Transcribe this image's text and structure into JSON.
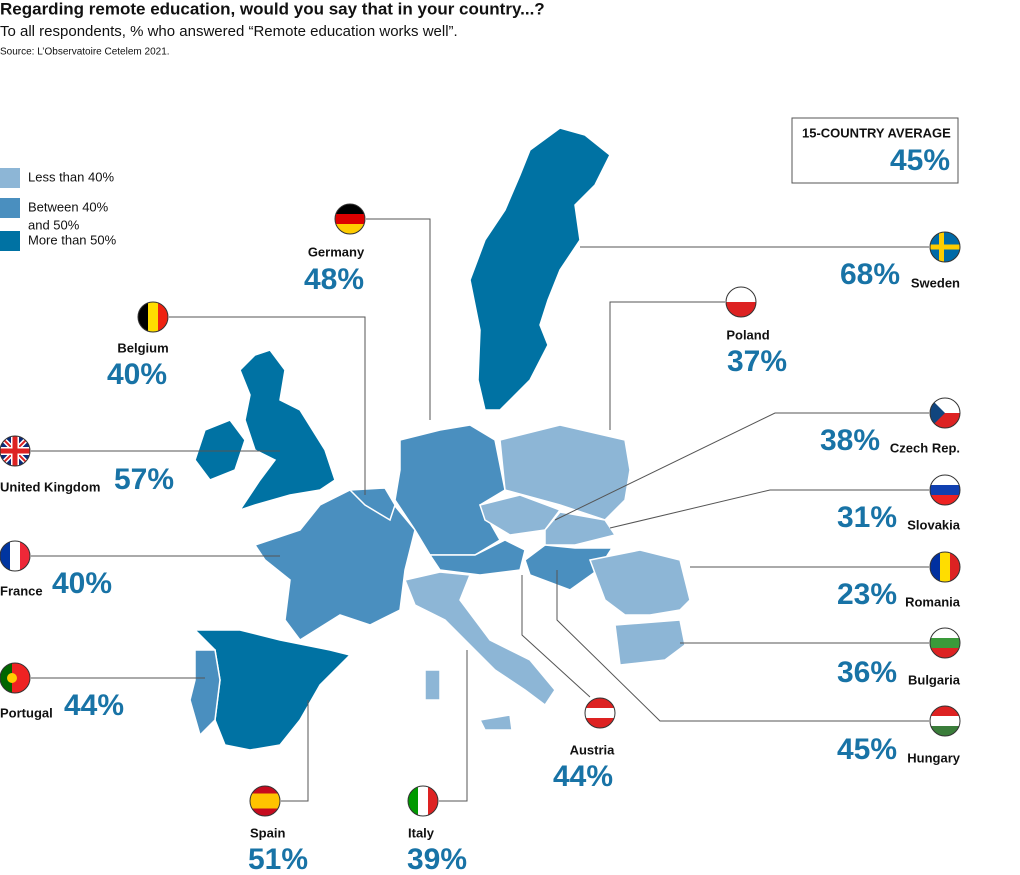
{
  "header": {
    "title": "Regarding remote education, would you say that in your country...?",
    "subtitle": "To all respondents, % who answered “Remote education works well”.",
    "source": "Source: L’Observatoire Cetelem 2021."
  },
  "legend": [
    {
      "label": "Less than 40%",
      "color": "#8db6d6"
    },
    {
      "label": "Between 40%",
      "label2": "and 50%",
      "color": "#4a8fbf"
    },
    {
      "label": "More than 50%",
      "color": "#0072a3"
    }
  ],
  "average": {
    "label": "15-COUNTRY AVERAGE",
    "value": "45%"
  },
  "countries": [
    {
      "name": "Germany",
      "value": "48%"
    },
    {
      "name": "Belgium",
      "value": "40%"
    },
    {
      "name": "United Kingdom",
      "value": "57%"
    },
    {
      "name": "France",
      "value": "40%"
    },
    {
      "name": "Portugal",
      "value": "44%"
    },
    {
      "name": "Spain",
      "value": "51%"
    },
    {
      "name": "Italy",
      "value": "39%"
    },
    {
      "name": "Austria",
      "value": "44%"
    },
    {
      "name": "Hungary",
      "value": "45%"
    },
    {
      "name": "Bulgaria",
      "value": "36%"
    },
    {
      "name": "Romania",
      "value": "23%"
    },
    {
      "name": "Slovakia",
      "value": "31%"
    },
    {
      "name": "Czech Rep.",
      "value": "38%"
    },
    {
      "name": "Poland",
      "value": "37%"
    },
    {
      "name": "Sweden",
      "value": "68%"
    }
  ]
}
